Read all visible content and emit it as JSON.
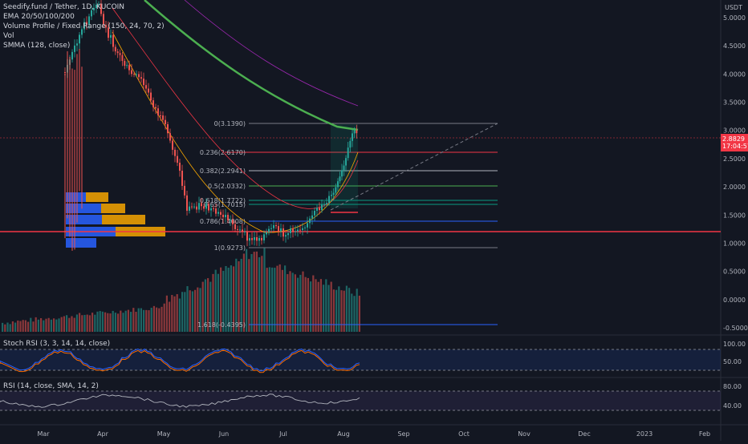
{
  "legend": {
    "pair": "Seedify.fund / Tether, 1D, KUCOIN",
    "ema": "EMA 20/50/100/200",
    "vp": "Volume Profile / Fixed Range (150, 24, 70, 2)",
    "vol": "Vol",
    "smma": "SMMA (128, close)"
  },
  "price_axis": {
    "currency": "USDT",
    "ticks": [
      "5.0000",
      "4.5000",
      "4.0000",
      "3.5000",
      "3.0000",
      "2.5000",
      "2.0000",
      "1.5000",
      "1.0000",
      "0.5000",
      "0.0000",
      "-0.5000"
    ],
    "current_price": "2.8829",
    "countdown": "17:04:57"
  },
  "fib": [
    {
      "label": "0(3.1390)",
      "color": "#787b86"
    },
    {
      "label": "0.236(2.6170)",
      "color": "#f23645"
    },
    {
      "label": "0.382(2.2941)",
      "color": "#b2b5be"
    },
    {
      "label": "0.5(2.0332)",
      "color": "#4caf50"
    },
    {
      "label": "0.618(1.7722)",
      "color": "#089981"
    },
    {
      "label": "0.65(1.7015)",
      "color": "#089981"
    },
    {
      "label": "0.786(1.4008)",
      "color": "#2962ff"
    },
    {
      "label": "1(0.9273)",
      "color": "#787b86"
    },
    {
      "label": "1.618(-0.4395)",
      "color": "#2962ff"
    }
  ],
  "stoch": {
    "label": "Stoch RSI (3, 3, 14, 14, close)",
    "ticks": [
      "100.00",
      "50.00"
    ]
  },
  "rsi": {
    "label": "RSI (14, close, SMA, 14, 2)",
    "ticks": [
      "80.00",
      "40.00"
    ]
  },
  "time_axis": [
    "Mar",
    "Apr",
    "May",
    "Jun",
    "Jul",
    "Aug",
    "Sep",
    "Oct",
    "Nov",
    "Dec",
    "2023",
    "Feb"
  ],
  "colors": {
    "up": "#26a69a",
    "down": "#ef5350",
    "bg": "#131722",
    "ema20": "#f7a600",
    "smma": "#4caf50",
    "hline": "#f23645"
  },
  "chart_data": {
    "type": "candlestick",
    "title": "Seedify.fund / Tether, 1D, KUCOIN",
    "x_labels": [
      "Mar",
      "Apr",
      "May",
      "Jun",
      "Jul",
      "Aug"
    ],
    "close_path": [
      {
        "x": "Mar",
        "y": 4.3
      },
      {
        "x": "Apr",
        "y": 4.9
      },
      {
        "x": "Apr",
        "y": 3.9
      },
      {
        "x": "May",
        "y": 2.2
      },
      {
        "x": "May",
        "y": 1.8
      },
      {
        "x": "Jun",
        "y": 1.4
      },
      {
        "x": "Jun",
        "y": 1.0
      },
      {
        "x": "Jul",
        "y": 1.2
      },
      {
        "x": "Jul",
        "y": 1.55
      },
      {
        "x": "Aug",
        "y": 2.3
      },
      {
        "x": "Aug",
        "y": 2.88
      }
    ],
    "current_price": 2.8829,
    "horizontal_line": 1.22,
    "ylim": [
      -0.5,
      5.0
    ],
    "fib_levels": [
      3.139,
      2.617,
      2.2941,
      2.0332,
      1.7722,
      1.7015,
      1.4008,
      0.9273,
      -0.4395
    ]
  }
}
